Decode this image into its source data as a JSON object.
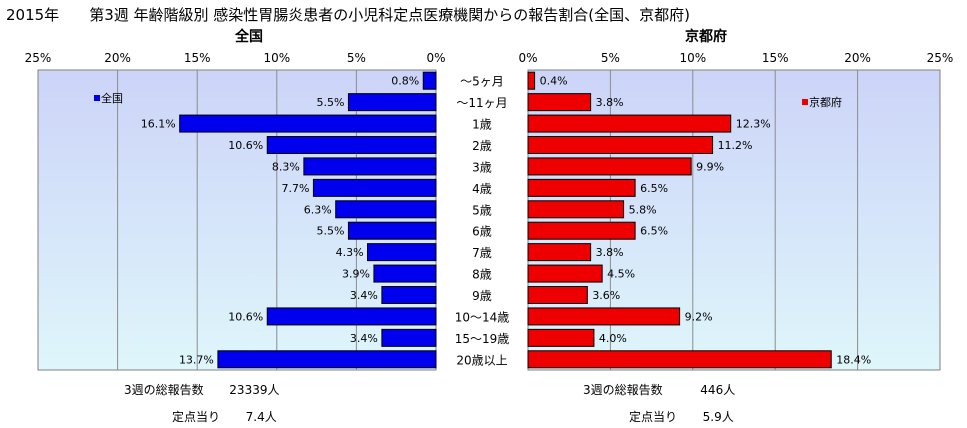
{
  "header": {
    "year": "2015年",
    "title": "第3週 年齢階級別 感染性胃腸炎患者の小児科定点医療機関からの報告割合(全国、京都府)"
  },
  "chart_data": {
    "type": "bar",
    "orientation": "horizontal",
    "categories": [
      "～5ヶ月",
      "～11ヶ月",
      "1歳",
      "2歳",
      "3歳",
      "4歳",
      "5歳",
      "6歳",
      "7歳",
      "8歳",
      "9歳",
      "10～14歳",
      "15～19歳",
      "20歳以上"
    ],
    "series": [
      {
        "name": "全国",
        "color": "#0000ee",
        "values": [
          0.8,
          5.5,
          16.1,
          10.6,
          8.3,
          7.7,
          6.3,
          5.5,
          4.3,
          3.9,
          3.4,
          10.6,
          3.4,
          13.7
        ],
        "value_labels": [
          "0.8%",
          "5.5%",
          "16.1%",
          "10.6%",
          "8.3%",
          "7.7%",
          "6.3%",
          "5.5%",
          "4.3%",
          "3.9%",
          "3.4%",
          "10.6%",
          "3.4%",
          "13.7%"
        ]
      },
      {
        "name": "京都府",
        "color": "#ee0000",
        "values": [
          0.4,
          3.8,
          12.3,
          11.2,
          9.9,
          6.5,
          5.8,
          6.5,
          3.8,
          4.5,
          3.6,
          9.2,
          4.0,
          18.4
        ],
        "value_labels": [
          "0.4%",
          "3.8%",
          "12.3%",
          "11.2%",
          "9.9%",
          "6.5%",
          "5.8%",
          "6.5%",
          "3.8%",
          "4.5%",
          "3.6%",
          "9.2%",
          "4.0%",
          "18.4%"
        ]
      }
    ],
    "panels": {
      "left_title": "全国",
      "right_title": "京都府"
    },
    "xlim": [
      0,
      25
    ],
    "ticks_left": [
      "25%",
      "20%",
      "15%",
      "10%",
      "5%",
      "0%"
    ],
    "ticks_right": [
      "0%",
      "5%",
      "10%",
      "15%",
      "20%",
      "25%"
    ],
    "grid": true,
    "legend_left": "全国",
    "legend_right": "京都府",
    "plot_background": [
      "#ccd4f8",
      "#dff6fb"
    ]
  },
  "footer": {
    "national": {
      "reports_label": "3週の総報告数",
      "reports_value": "23339人",
      "per_sentinel_label": "定点当り",
      "per_sentinel_value": "7.4人"
    },
    "kyoto": {
      "reports_label": "3週の総報告数",
      "reports_value": "446人",
      "per_sentinel_label": "定点当り",
      "per_sentinel_value": "5.9人"
    }
  }
}
